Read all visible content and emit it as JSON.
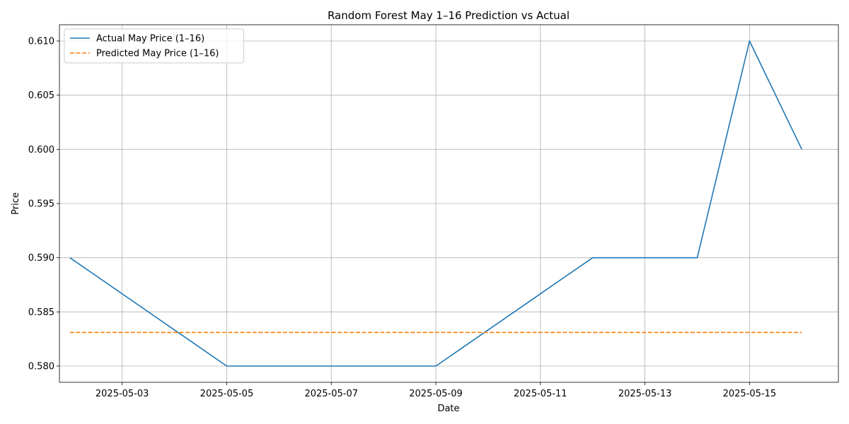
{
  "chart_data": {
    "type": "line",
    "title": "Random Forest May 1–16 Prediction vs Actual",
    "xlabel": "Date",
    "ylabel": "Price",
    "x": [
      "2025-05-02",
      "2025-05-05",
      "2025-05-06",
      "2025-05-07",
      "2025-05-08",
      "2025-05-09",
      "2025-05-12",
      "2025-05-13",
      "2025-05-14",
      "2025-05-15",
      "2025-05-16"
    ],
    "x_ticks": [
      "2025-05-03",
      "2025-05-05",
      "2025-05-07",
      "2025-05-09",
      "2025-05-11",
      "2025-05-13",
      "2025-05-15"
    ],
    "xlim": [
      "2025-05-01T19:12",
      "2025-05-16T16:48"
    ],
    "y_ticks": [
      0.58,
      0.585,
      0.59,
      0.595,
      0.6,
      0.605,
      0.61
    ],
    "y_tick_labels": [
      "0.580",
      "0.585",
      "0.590",
      "0.595",
      "0.600",
      "0.605",
      "0.610"
    ],
    "ylim": [
      0.5785,
      0.6115
    ],
    "grid": true,
    "legend_position": "upper-left",
    "series": [
      {
        "name": "Actual May Price (1–16)",
        "color": "#1f77b4",
        "style": "solid",
        "values": [
          0.59,
          0.58,
          0.58,
          0.58,
          0.58,
          0.58,
          0.59,
          0.59,
          0.59,
          0.61,
          0.6
        ]
      },
      {
        "name": "Predicted May Price (1–16)",
        "color": "#ff7f0e",
        "style": "dashed",
        "values": [
          0.5831,
          0.5831,
          0.5831,
          0.5831,
          0.5831,
          0.5831,
          0.5831,
          0.5831,
          0.5831,
          0.5831,
          0.5831
        ]
      }
    ]
  }
}
